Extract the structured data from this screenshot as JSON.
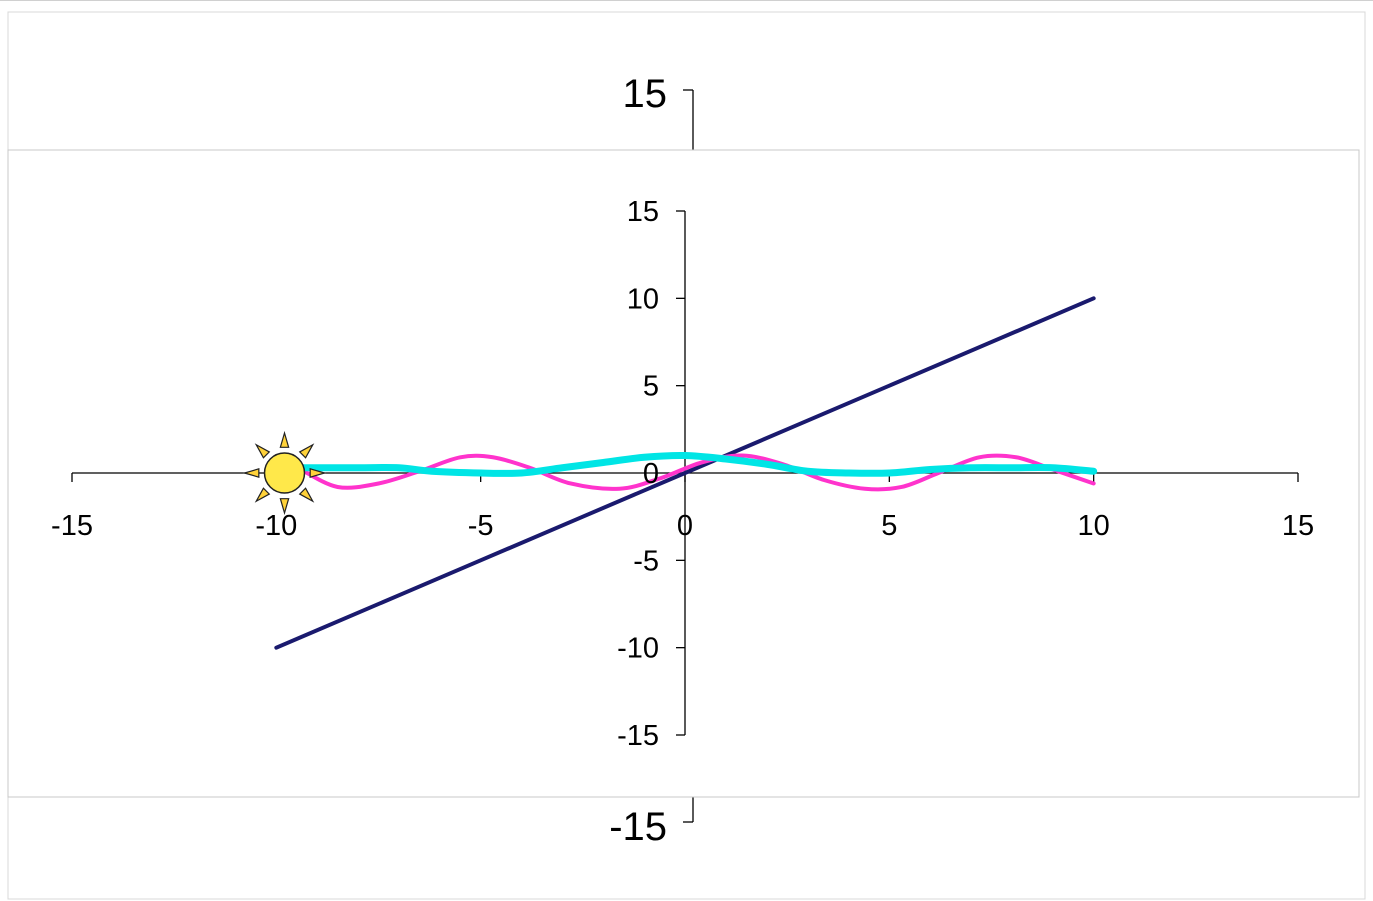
{
  "chart_data": [
    {
      "type": "line",
      "title": "",
      "xlabel": "",
      "ylabel": "",
      "ylim": [
        -15,
        15
      ],
      "y_ticks": [
        "15",
        "-15"
      ],
      "series": []
    },
    {
      "type": "line",
      "title": "",
      "xlabel": "",
      "ylabel": "",
      "xlim": [
        -15,
        15
      ],
      "ylim": [
        -15,
        15
      ],
      "grid": false,
      "legend": "none",
      "x_ticks": [
        "-15",
        "-10",
        "-5",
        "0",
        "5",
        "10",
        "15"
      ],
      "y_ticks": [
        "15",
        "10",
        "5",
        "0",
        "-5",
        "-10",
        "-15"
      ],
      "series": [
        {
          "color": "#1a1a6e",
          "x": [
            -10,
            -5,
            0,
            5,
            10
          ],
          "y": [
            -10,
            -5,
            0,
            5,
            10
          ]
        },
        {
          "color": "#ff33cc",
          "x": [
            -9.4,
            -8.5,
            -7.5,
            -6.5,
            -5.5,
            -4.7,
            -3.8,
            -2.8,
            -1.6,
            -0.6,
            0.4,
            1.4,
            2.4,
            3.4,
            4.4,
            5.3,
            6.2,
            7.2,
            8.1,
            9.0,
            10.0
          ],
          "y": [
            0.2,
            -0.8,
            -0.6,
            0.1,
            0.9,
            0.9,
            0.3,
            -0.6,
            -0.9,
            -0.3,
            0.6,
            1.0,
            0.5,
            -0.4,
            -0.9,
            -0.8,
            0.0,
            0.9,
            0.9,
            0.2,
            -0.6
          ]
        },
        {
          "color": "#00e5e5",
          "x": [
            -9.4,
            -8.0,
            -7.0,
            -6.2,
            -5.0,
            -4.0,
            -3.0,
            -2.0,
            -1.0,
            0.0,
            1.0,
            2.0,
            3.0,
            4.0,
            5.0,
            6.0,
            7.0,
            8.0,
            9.0,
            10.0
          ],
          "y": [
            0.3,
            0.3,
            0.3,
            0.1,
            0.0,
            0.0,
            0.3,
            0.6,
            0.9,
            1.0,
            0.8,
            0.5,
            0.1,
            0.0,
            0.0,
            0.2,
            0.3,
            0.3,
            0.3,
            0.1
          ]
        }
      ],
      "marker_icon": "sun-icon",
      "marker_at": [
        -9.8,
        0
      ]
    }
  ]
}
